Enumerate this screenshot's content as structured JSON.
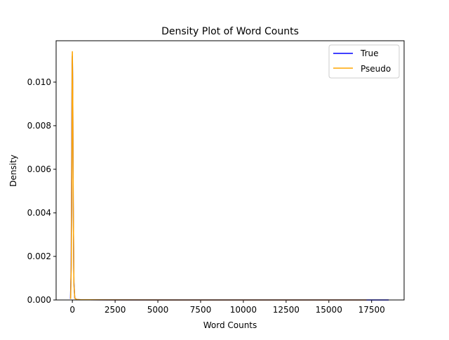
{
  "chart_data": {
    "type": "line",
    "title": "Density Plot of Word Counts",
    "xlabel": "Word Counts",
    "ylabel": "Density",
    "xlim": [
      -950,
      19400
    ],
    "ylim": [
      0,
      0.0119
    ],
    "xticks": [
      0,
      2500,
      5000,
      7500,
      10000,
      12500,
      15000,
      17500
    ],
    "xtick_labels": [
      "0",
      "2500",
      "5000",
      "7500",
      "10000",
      "12500",
      "15000",
      "17500"
    ],
    "yticks": [
      0,
      0.002,
      0.004,
      0.006,
      0.008,
      0.01
    ],
    "ytick_labels": [
      "0.000",
      "0.002",
      "0.004",
      "0.006",
      "0.008",
      "0.010"
    ],
    "grid": false,
    "legend_placement": "top-right",
    "series": [
      {
        "name": "True",
        "color": "#0000ff",
        "x": [
          -110,
          -70,
          -40,
          -15,
          0,
          20,
          50,
          90,
          140,
          250,
          500,
          2000,
          10000,
          17500,
          18500
        ],
        "y": [
          5e-05,
          0.0015,
          0.0065,
          0.0108,
          0.0112,
          0.0098,
          0.0045,
          0.0008,
          8e-05,
          2e-05,
          1e-05,
          3e-06,
          1e-06,
          5e-07,
          5e-07
        ]
      },
      {
        "name": "Pseudo",
        "color": "#ffa500",
        "x": [
          -100,
          -60,
          -30,
          -10,
          0,
          20,
          50,
          90,
          140,
          250,
          500,
          2000,
          10000,
          17200
        ],
        "y": [
          5e-05,
          0.0018,
          0.007,
          0.0111,
          0.0114,
          0.0099,
          0.0046,
          0.0007,
          8e-05,
          2e-05,
          1e-05,
          3e-06,
          1e-06,
          5e-07
        ]
      }
    ]
  }
}
